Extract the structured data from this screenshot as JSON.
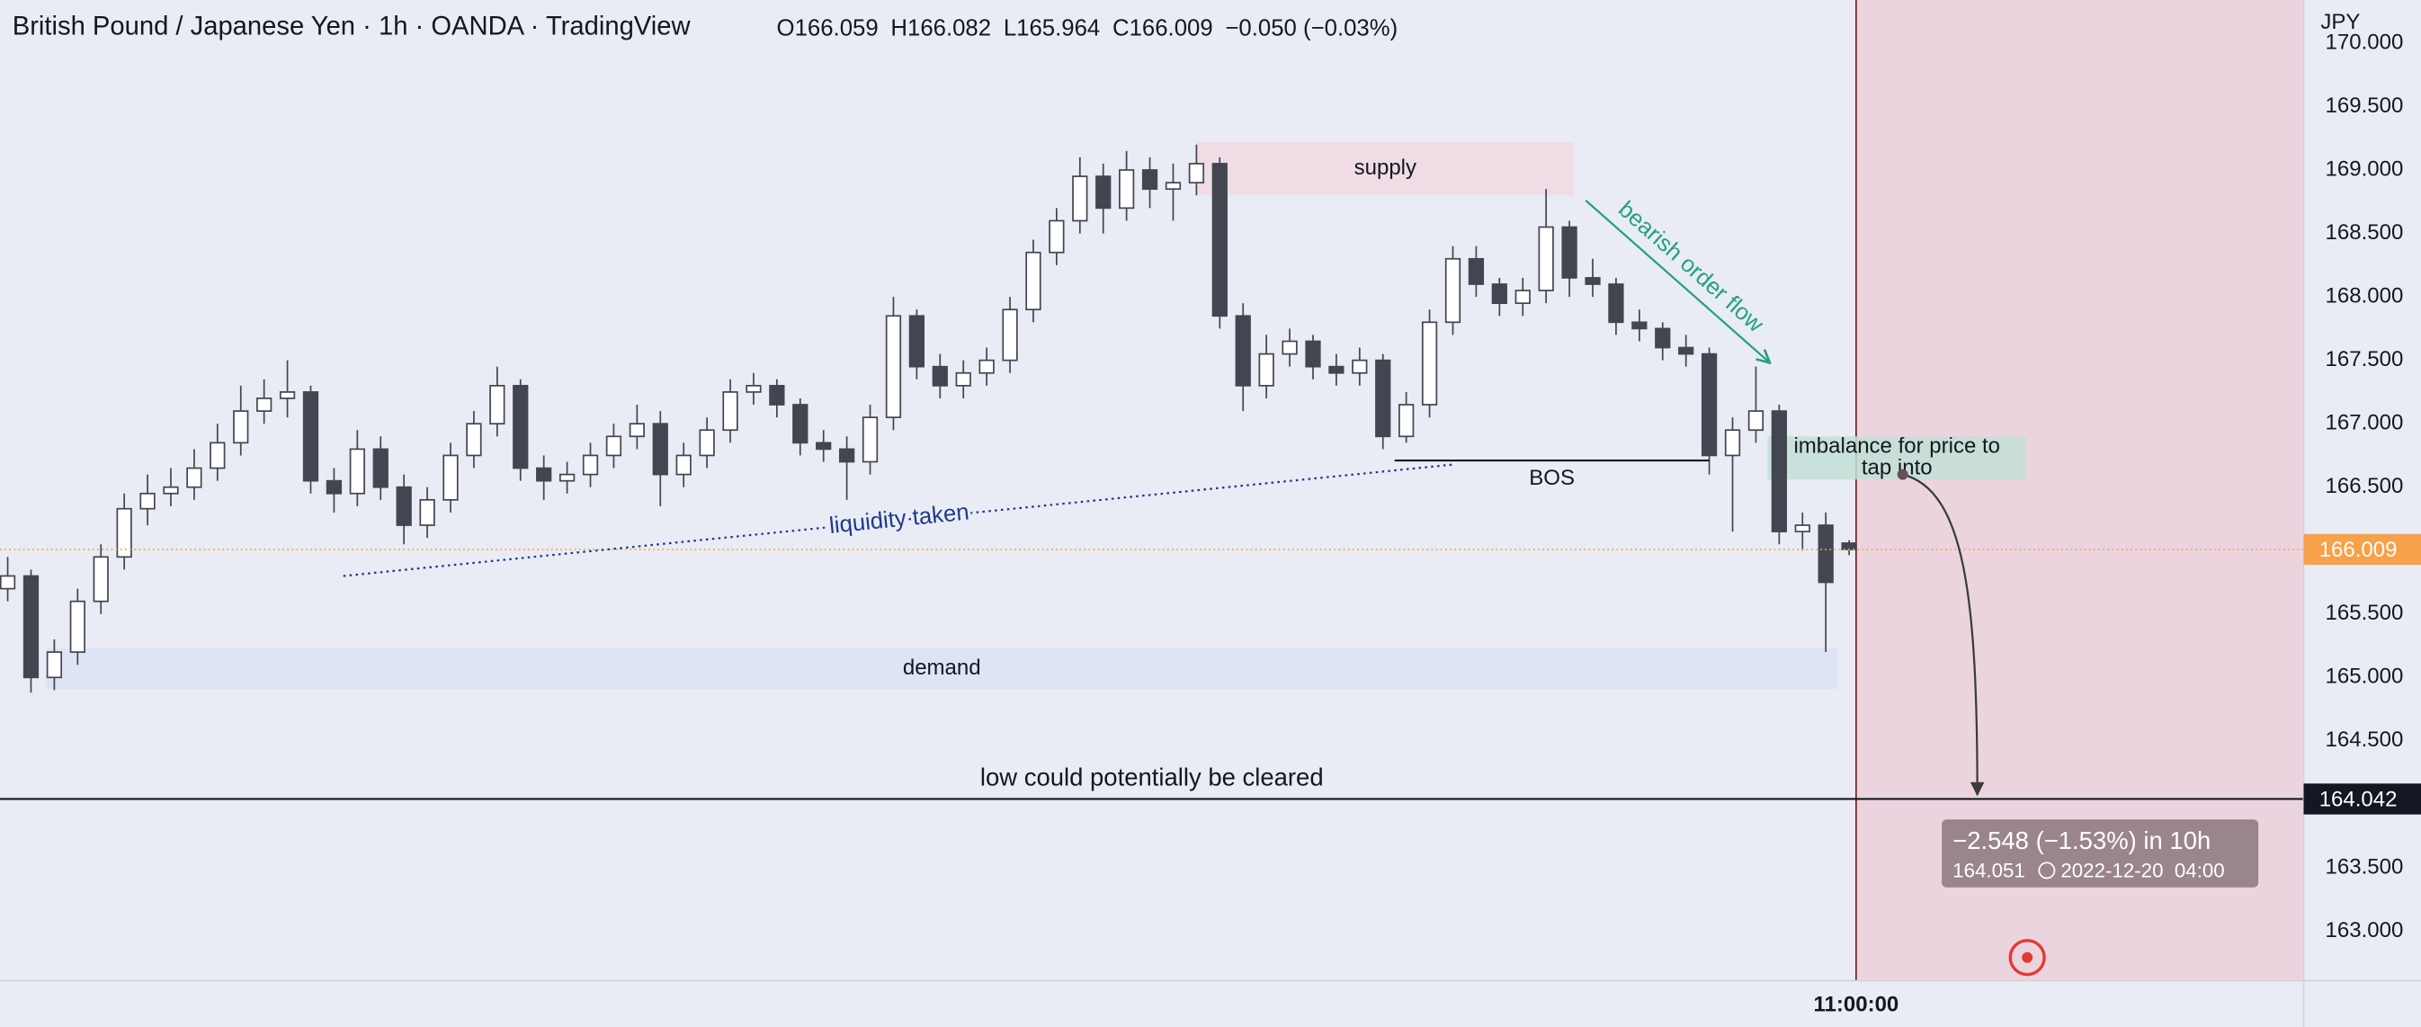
{
  "chart_data": {
    "type": "candlestick",
    "title": "British Pound / Japanese Yen · 1h · OANDA · TradingView",
    "ohlc_labels": [
      "O",
      "H",
      "L",
      "C"
    ],
    "change": "−0.050 (−0.03%)",
    "currency": "JPY",
    "up_color": "#ffffff",
    "down_color": "#434651",
    "wick_color": "#434651",
    "open": [
      165.7,
      165.8,
      165.0,
      165.2,
      165.6,
      165.95,
      166.33,
      166.45,
      166.5,
      166.65,
      166.85,
      167.1,
      167.2,
      167.25,
      166.55,
      166.45,
      166.8,
      166.5,
      166.2,
      166.4,
      166.75,
      167.0,
      167.3,
      166.65,
      166.55,
      166.6,
      166.75,
      166.9,
      167.0,
      166.6,
      166.75,
      166.95,
      167.25,
      167.3,
      167.15,
      166.85,
      166.8,
      166.7,
      167.05,
      167.85,
      167.45,
      167.3,
      167.4,
      167.5,
      167.9,
      168.35,
      168.6,
      168.95,
      168.7,
      169.0,
      168.85,
      168.9,
      169.05,
      167.85,
      167.3,
      167.55,
      167.65,
      167.45,
      167.4,
      167.5,
      166.9,
      167.15,
      167.8,
      168.3,
      168.1,
      167.95,
      168.05,
      168.55,
      168.15,
      168.1,
      167.8,
      167.75,
      167.6,
      167.55,
      166.75,
      166.95,
      167.1,
      166.15,
      166.2,
      166.059
    ],
    "high": [
      165.95,
      165.85,
      165.3,
      165.7,
      166.05,
      166.45,
      166.6,
      166.65,
      166.8,
      167.0,
      167.3,
      167.35,
      167.5,
      167.3,
      166.65,
      166.95,
      166.9,
      166.6,
      166.5,
      166.85,
      167.1,
      167.45,
      167.35,
      166.75,
      166.7,
      166.85,
      167.0,
      167.15,
      167.1,
      166.85,
      167.05,
      167.35,
      167.4,
      167.35,
      167.2,
      166.95,
      166.9,
      167.15,
      168.0,
      167.9,
      167.55,
      167.5,
      167.6,
      168.0,
      168.45,
      168.7,
      169.1,
      169.05,
      169.15,
      169.1,
      169.05,
      169.2,
      169.1,
      167.95,
      167.7,
      167.75,
      167.7,
      167.55,
      167.6,
      167.55,
      167.25,
      167.9,
      168.4,
      168.4,
      168.15,
      168.15,
      168.85,
      168.6,
      168.3,
      168.15,
      167.9,
      167.8,
      167.7,
      167.6,
      167.05,
      167.45,
      167.15,
      166.3,
      166.3,
      166.082
    ],
    "low": [
      165.6,
      164.88,
      164.9,
      165.1,
      165.5,
      165.85,
      166.2,
      166.35,
      166.4,
      166.55,
      166.75,
      167.0,
      167.05,
      166.45,
      166.3,
      166.35,
      166.4,
      166.05,
      166.1,
      166.3,
      166.65,
      166.9,
      166.55,
      166.4,
      166.45,
      166.5,
      166.65,
      166.8,
      166.35,
      166.5,
      166.65,
      166.85,
      167.15,
      167.05,
      166.75,
      166.7,
      166.4,
      166.6,
      166.95,
      167.35,
      167.2,
      167.2,
      167.3,
      167.4,
      167.8,
      168.25,
      168.5,
      168.5,
      168.6,
      168.7,
      168.6,
      168.8,
      167.75,
      167.1,
      167.2,
      167.45,
      167.35,
      167.3,
      167.3,
      166.8,
      166.85,
      167.05,
      167.7,
      168.0,
      167.85,
      167.85,
      167.95,
      168.0,
      168.0,
      167.7,
      167.65,
      167.5,
      167.45,
      166.6,
      166.15,
      166.85,
      166.05,
      166.0,
      165.2,
      165.964
    ],
    "close": [
      165.8,
      165.0,
      165.2,
      165.6,
      165.95,
      166.33,
      166.45,
      166.5,
      166.65,
      166.85,
      167.1,
      167.2,
      167.25,
      166.55,
      166.45,
      166.8,
      166.5,
      166.2,
      166.4,
      166.75,
      167.0,
      167.3,
      166.65,
      166.55,
      166.6,
      166.75,
      166.9,
      167.0,
      166.6,
      166.75,
      166.95,
      167.25,
      167.3,
      167.15,
      166.85,
      166.8,
      166.7,
      167.05,
      167.85,
      167.45,
      167.3,
      167.4,
      167.5,
      167.9,
      168.35,
      168.6,
      168.95,
      168.7,
      169.0,
      168.85,
      168.9,
      169.05,
      167.85,
      167.3,
      167.55,
      167.65,
      167.45,
      167.4,
      167.5,
      166.9,
      167.15,
      167.8,
      168.3,
      168.1,
      167.95,
      168.05,
      168.55,
      168.15,
      168.1,
      167.8,
      167.75,
      167.6,
      167.55,
      166.75,
      166.95,
      167.1,
      166.15,
      166.2,
      165.75,
      166.009
    ],
    "xlim": [
      -0.33,
      98.5
    ],
    "xticks": [
      {
        "value": 79.3,
        "label": "11:00:00"
      }
    ],
    "ylim": [
      162.61,
      170.34
    ],
    "yticks": [
      {
        "value": 163,
        "label": "163.000"
      },
      {
        "value": 163.5,
        "label": "163.500"
      },
      {
        "value": 164,
        "label": "164.000"
      },
      {
        "value": 164.5,
        "label": "164.500"
      },
      {
        "value": 165,
        "label": "165.000"
      },
      {
        "value": 165.5,
        "label": "165.500"
      },
      {
        "value": 166,
        "label": "166.000"
      },
      {
        "value": 166.5,
        "label": "166.500"
      },
      {
        "value": 167,
        "label": "167.000"
      },
      {
        "value": 167.5,
        "label": "167.500"
      },
      {
        "value": 168,
        "label": "168.000"
      },
      {
        "value": 168.5,
        "label": "168.500"
      },
      {
        "value": 169,
        "label": "169.000"
      },
      {
        "value": 169.5,
        "label": "169.500"
      },
      {
        "value": 170,
        "label": "170.000"
      }
    ],
    "grid": false,
    "last_price_color": "#f7a14a",
    "forecast_region_start": 79.3,
    "forecast_region_color": "#ecd4de",
    "zones": [
      {
        "label": "supply",
        "x": [
          51.0,
          67.2
        ],
        "y": [
          168.8,
          169.22
        ],
        "color": "#f0d9e0"
      },
      {
        "label": "demand",
        "x": [
          1.65,
          78.5
        ],
        "y": [
          164.91,
          165.23
        ],
        "color": "#dbe3f4"
      },
      {
        "label_lines": [
          "imbalance for price to",
          "tap into"
        ],
        "x": [
          75.5,
          86.6
        ],
        "y": [
          166.56,
          166.9
        ],
        "color": "#c2dfd6"
      }
    ],
    "levels": [
      {
        "label": "BOS",
        "value": 166.71,
        "x": [
          59.5,
          73.0
        ]
      }
    ],
    "horizontal_line": {
      "label": "low could potentially be cleared",
      "value": 164.042
    },
    "trend_lines": [
      {
        "label": "liquidity taken",
        "x": [
          14.4,
          62.1
        ],
        "y": [
          165.8,
          166.68
        ],
        "color": "#1e3a8a",
        "style": "dotted"
      },
      {
        "label": "bearish order flow",
        "x": [
          67.7,
          75.6
        ],
        "y": [
          168.76,
          167.48
        ],
        "color": "#26a17b",
        "style": "arrow"
      }
    ],
    "projection": {
      "x": [
        81.3,
        84.5
      ],
      "y": [
        166.6,
        164.051
      ],
      "label": "−2.548 (−1.53%) in 10h",
      "date_label": "2022-12-20  04:00"
    }
  }
}
